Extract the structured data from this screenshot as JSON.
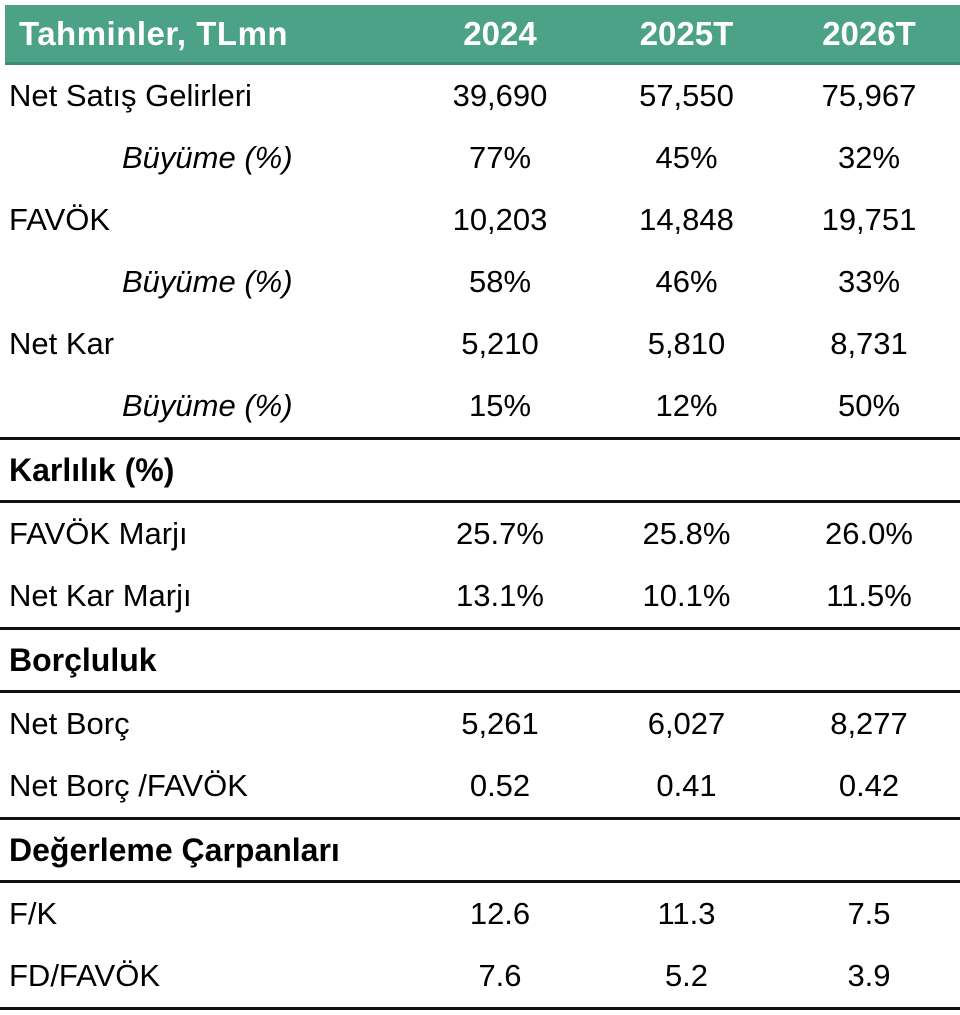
{
  "styles": {
    "accent_green": "#4CA287",
    "accent_green_dark": "#3D8C73",
    "rule_color": "#111111",
    "header_text_color": "#FFFFFF",
    "body_text_color": "#000000"
  },
  "chart_data": {
    "type": "table",
    "title": "Tahminler, TLmn",
    "columns": [
      "2024",
      "2025T",
      "2026T"
    ],
    "sections": [
      {
        "name": null,
        "rows": [
          {
            "label": "Net Satış Gelirleri",
            "values": [
              "39,690",
              "57,550",
              "75,967"
            ],
            "style": "normal"
          },
          {
            "label": "Büyüme (%)",
            "values": [
              "77%",
              "45%",
              "32%"
            ],
            "style": "growth"
          },
          {
            "label": "FAVÖK",
            "values": [
              "10,203",
              "14,848",
              "19,751"
            ],
            "style": "normal"
          },
          {
            "label": "Büyüme (%)",
            "values": [
              "58%",
              "46%",
              "33%"
            ],
            "style": "growth"
          },
          {
            "label": "Net Kar",
            "values": [
              "5,210",
              "5,810",
              "8,731"
            ],
            "style": "normal"
          },
          {
            "label": "Büyüme (%)",
            "values": [
              "15%",
              "12%",
              "50%"
            ],
            "style": "growth"
          }
        ]
      },
      {
        "name": "Karlılık (%)",
        "rows": [
          {
            "label": "FAVÖK Marjı",
            "values": [
              "25.7%",
              "25.8%",
              "26.0%"
            ],
            "style": "normal"
          },
          {
            "label": "Net Kar Marjı",
            "values": [
              "13.1%",
              "10.1%",
              "11.5%"
            ],
            "style": "normal"
          }
        ]
      },
      {
        "name": "Borçluluk",
        "rows": [
          {
            "label": "Net Borç",
            "values": [
              "5,261",
              "6,027",
              "8,277"
            ],
            "style": "normal"
          },
          {
            "label": "Net Borç /FAVÖK",
            "values": [
              "0.52",
              "0.41",
              "0.42"
            ],
            "style": "normal"
          }
        ]
      },
      {
        "name": "Değerleme Çarpanları",
        "rows": [
          {
            "label": "F/K",
            "values": [
              "12.6",
              "11.3",
              "7.5"
            ],
            "style": "normal"
          },
          {
            "label": "FD/FAVÖK",
            "values": [
              "7.6",
              "5.2",
              "3.9"
            ],
            "style": "normal"
          }
        ]
      }
    ]
  }
}
